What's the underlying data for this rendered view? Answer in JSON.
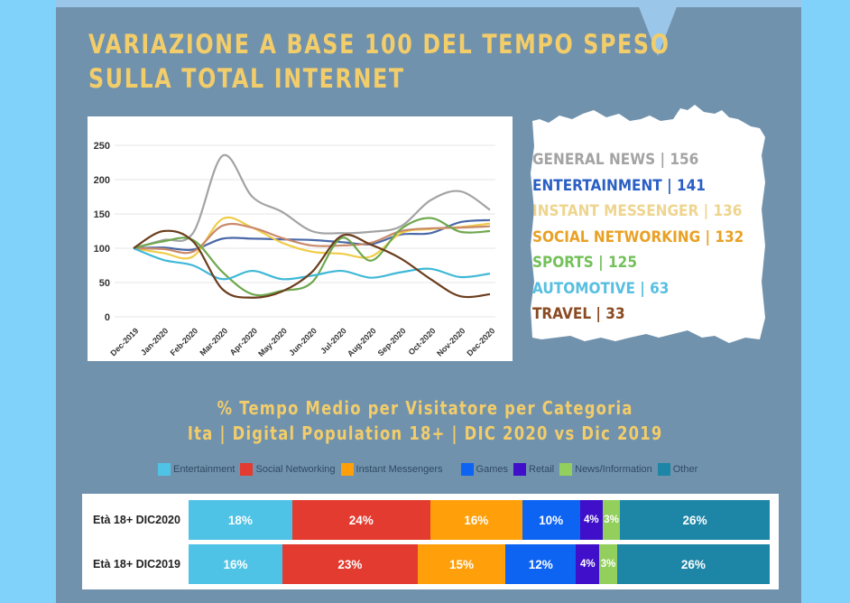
{
  "title": {
    "line1": "VARIAZIONE A BASE 100 DEL TEMPO SPESO",
    "line2": "SULLA TOTAL INTERNET"
  },
  "colors": {
    "background": "#80d2fa",
    "panel": "#7192ad",
    "accent_yellow": "#f2cd6a"
  },
  "legend_list": [
    {
      "label": "GENERAL NEWS | 156",
      "color": "#a3a3a3"
    },
    {
      "label": "ENTERTAINMENT | 141",
      "color": "#2a5fc4"
    },
    {
      "label": "INSTANT MESSENGER | 136",
      "color": "#eed58e"
    },
    {
      "label": "SOCIAL NETWORKING | 132",
      "color": "#e9a125"
    },
    {
      "label": "SPORTS | 125",
      "color": "#74c05a"
    },
    {
      "label": "AUTOMOTIVE | 63",
      "color": "#57bfe0"
    },
    {
      "label": "TRAVEL | 33",
      "color": "#8a4a22"
    }
  ],
  "section2": {
    "title_line1": "% Tempo Medio per Visitatore per Categoria",
    "title_line2": "Ita | Digital Population 18+ | DIC 2020 vs Dic 2019"
  },
  "chart_data": [
    {
      "type": "line",
      "title": "Variazione a base 100 del tempo speso sulla Total Internet",
      "xlabel": "",
      "ylabel": "",
      "x": [
        "Dec-2019",
        "Jan-2020",
        "Feb-2020",
        "Mar-2020",
        "Apr-2020",
        "May-2020",
        "Jun-2020",
        "Jul-2020",
        "Aug-2020",
        "Sep-2020",
        "Oct-2020",
        "Nov-2020",
        "Dec-2020"
      ],
      "ylim": [
        0,
        250
      ],
      "yticks": [
        0,
        50,
        100,
        150,
        200,
        250
      ],
      "grid": true,
      "series": [
        {
          "name": "General News",
          "color": "#a3a3a3",
          "values": [
            100,
            112,
            122,
            235,
            175,
            153,
            125,
            122,
            124,
            132,
            170,
            183,
            156
          ]
        },
        {
          "name": "Entertainment",
          "color": "#4a68a8",
          "values": [
            100,
            101,
            98,
            114,
            114,
            113,
            112,
            109,
            106,
            120,
            122,
            138,
            141
          ]
        },
        {
          "name": "Instant Messenger",
          "color": "#f0cc48",
          "values": [
            100,
            93,
            88,
            143,
            130,
            108,
            95,
            92,
            88,
            122,
            128,
            131,
            136
          ]
        },
        {
          "name": "Social Networking",
          "color": "#c98a6a",
          "values": [
            100,
            99,
            95,
            133,
            130,
            115,
            104,
            104,
            108,
            125,
            129,
            130,
            132
          ]
        },
        {
          "name": "Sports",
          "color": "#6fa84e",
          "values": [
            100,
            110,
            112,
            65,
            33,
            38,
            50,
            115,
            82,
            128,
            144,
            124,
            125
          ]
        },
        {
          "name": "Automotive",
          "color": "#3fb8d6",
          "values": [
            100,
            83,
            75,
            55,
            67,
            55,
            60,
            67,
            57,
            65,
            70,
            58,
            63
          ]
        },
        {
          "name": "Travel",
          "color": "#6b3e1e",
          "values": [
            100,
            125,
            110,
            40,
            28,
            37,
            65,
            118,
            105,
            85,
            55,
            30,
            33
          ]
        }
      ]
    },
    {
      "type": "bar",
      "orientation": "horizontal-stacked",
      "title": "% Tempo Medio per Visitatore per Categoria - Ita | Digital Population 18+ | DIC 2020 vs Dic 2019",
      "categories": [
        "Età 18+ DIC2020",
        "Età 18+ DIC2019"
      ],
      "legend_position": "top",
      "series": [
        {
          "name": "Entertainment",
          "color": "#4fc3e6",
          "values": [
            18,
            16
          ]
        },
        {
          "name": "Social Networking",
          "color": "#e33b2f",
          "values": [
            24,
            23
          ]
        },
        {
          "name": "Instant Messengers",
          "color": "#ff9f0a",
          "values": [
            16,
            15
          ]
        },
        {
          "name": "Games",
          "color": "#0d63f2",
          "values": [
            10,
            12
          ]
        },
        {
          "name": "Retail",
          "color": "#3f0fc9",
          "values": [
            4,
            4
          ]
        },
        {
          "name": "News/Information",
          "color": "#92cf5c",
          "values": [
            3,
            3
          ]
        },
        {
          "name": "Other",
          "color": "#1d86a6",
          "values": [
            26,
            26
          ]
        }
      ],
      "labels": [
        [
          "18%",
          "24%",
          "16%",
          "10%",
          "4%",
          "3%",
          "26%"
        ],
        [
          "16%",
          "23%",
          "15%",
          "12%",
          "4%",
          "3%",
          "26%"
        ]
      ]
    }
  ]
}
